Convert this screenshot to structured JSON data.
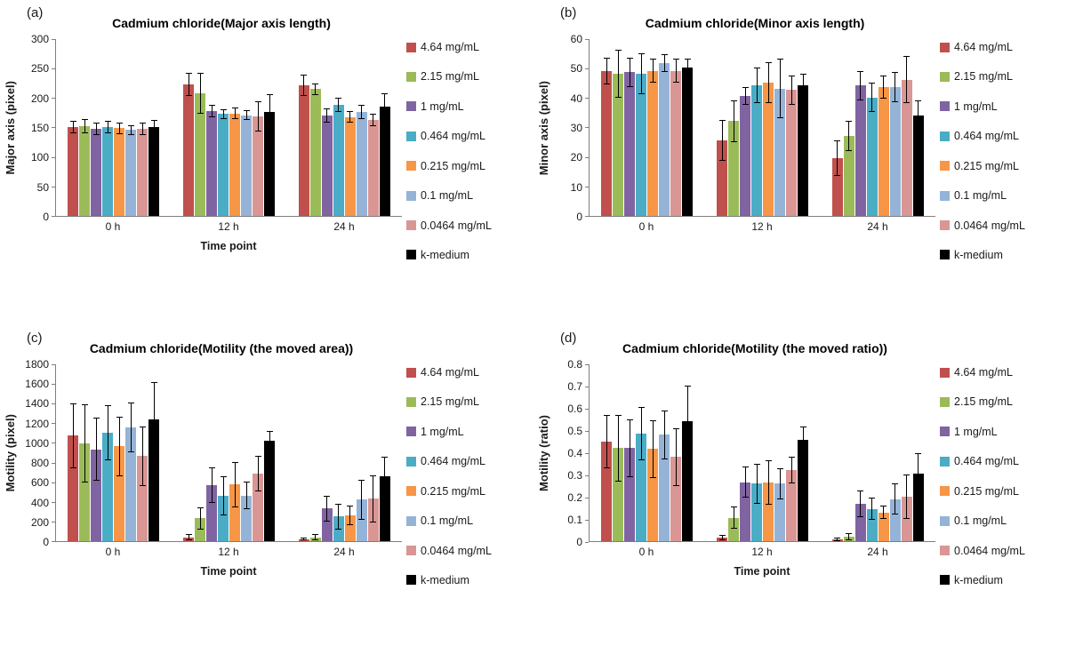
{
  "series": [
    {
      "key": "4-64-mgml",
      "name": "4.64 mg/mL",
      "color": "#C0504D"
    },
    {
      "key": "2-15-mgml",
      "name": "2.15 mg/mL",
      "color": "#9BBB59"
    },
    {
      "key": "1-mgml",
      "name": "1 mg/mL",
      "color": "#8064A2"
    },
    {
      "key": "0-464-mgml",
      "name": "0.464 mg/mL",
      "color": "#4BACC6"
    },
    {
      "key": "0-215-mgml",
      "name": "0.215 mg/mL",
      "color": "#F79646"
    },
    {
      "key": "0-1-mgml",
      "name": "0.1 mg/mL",
      "color": "#95B3D7"
    },
    {
      "key": "0-0464-mgml",
      "name": "0.0464 mg/mL",
      "color": "#D99694"
    },
    {
      "key": "k-medium",
      "name": "k-medium",
      "color": "#000000"
    }
  ],
  "chart_data": [
    {
      "type": "bar",
      "tag": "(a)",
      "title": "Cadmium chloride(Major axis length)",
      "ylabel": "Major axis (pixel)",
      "xlabel": "Time point",
      "ylim": [
        0,
        300
      ],
      "yticks": [
        "300",
        "250",
        "200",
        "150",
        "100",
        "50",
        "0"
      ],
      "grid": false,
      "legend_position": "right",
      "categories": [
        "0 h",
        "12 h",
        "24 h"
      ],
      "series": [
        {
          "name": "4.64 mg/mL",
          "values": [
            150,
            222,
            220
          ],
          "errors": [
            10,
            20,
            18
          ]
        },
        {
          "name": "2.15 mg/mL",
          "values": [
            152,
            207,
            214
          ],
          "errors": [
            12,
            35,
            10
          ]
        },
        {
          "name": "1 mg/mL",
          "values": [
            147,
            177,
            170
          ],
          "errors": [
            10,
            10,
            12
          ]
        },
        {
          "name": "0.464 mg/mL",
          "values": [
            150,
            172,
            187
          ],
          "errors": [
            10,
            8,
            12
          ]
        },
        {
          "name": "0.215 mg/mL",
          "values": [
            148,
            173,
            167
          ],
          "errors": [
            10,
            10,
            10
          ]
        },
        {
          "name": "0.1 mg/mL",
          "values": [
            145,
            170,
            176
          ],
          "errors": [
            8,
            8,
            12
          ]
        },
        {
          "name": "0.0464 mg/mL",
          "values": [
            147,
            168,
            162
          ],
          "errors": [
            10,
            25,
            10
          ]
        },
        {
          "name": "k-medium",
          "values": [
            150,
            175,
            185
          ],
          "errors": [
            12,
            30,
            22
          ]
        }
      ]
    },
    {
      "type": "bar",
      "tag": "(b)",
      "title": "Cadmium chloride(Minor axis length)",
      "ylabel": "Minor axis (pixel)",
      "xlabel": "",
      "ylim": [
        0,
        60
      ],
      "yticks": [
        "60",
        "50",
        "40",
        "30",
        "20",
        "10",
        "0"
      ],
      "grid": false,
      "legend_position": "right",
      "categories": [
        "0 h",
        "12 h",
        "24 h"
      ],
      "series": [
        {
          "name": "4.64 mg/mL",
          "values": [
            49,
            25.5,
            19.5
          ],
          "errors": [
            4.5,
            7,
            6
          ]
        },
        {
          "name": "2.15 mg/mL",
          "values": [
            48,
            32,
            27
          ],
          "errors": [
            8,
            7,
            5
          ]
        },
        {
          "name": "1 mg/mL",
          "values": [
            48.5,
            40.5,
            44
          ],
          "errors": [
            5,
            3,
            5
          ]
        },
        {
          "name": "0.464 mg/mL",
          "values": [
            48,
            44,
            40
          ],
          "errors": [
            7,
            6,
            5
          ]
        },
        {
          "name": "0.215 mg/mL",
          "values": [
            49,
            45,
            43.5
          ],
          "errors": [
            4,
            7,
            4
          ]
        },
        {
          "name": "0.1 mg/mL",
          "values": [
            51.5,
            43,
            43.5
          ],
          "errors": [
            3,
            10,
            5
          ]
        },
        {
          "name": "0.0464 mg/mL",
          "values": [
            49,
            42.5,
            46
          ],
          "errors": [
            4,
            5,
            8
          ]
        },
        {
          "name": "k-medium",
          "values": [
            50,
            44,
            34
          ],
          "errors": [
            3,
            4,
            5
          ]
        }
      ]
    },
    {
      "type": "bar",
      "tag": "(c)",
      "title": "Cadmium chloride(Motility (the moved area))",
      "ylabel": "Motility (pixel)",
      "xlabel": "Time point",
      "ylim": [
        0,
        1800
      ],
      "yticks": [
        "1800",
        "1600",
        "1400",
        "1200",
        "1000",
        "800",
        "600",
        "400",
        "200",
        "0"
      ],
      "grid": false,
      "legend_position": "right",
      "categories": [
        "0 h",
        "12 h",
        "24 h"
      ],
      "series": [
        {
          "name": "4.64 mg/mL",
          "values": [
            1070,
            40,
            20
          ],
          "errors": [
            330,
            30,
            15
          ]
        },
        {
          "name": "2.15 mg/mL",
          "values": [
            990,
            230,
            40
          ],
          "errors": [
            400,
            110,
            30
          ]
        },
        {
          "name": "1 mg/mL",
          "values": [
            930,
            570,
            330
          ],
          "errors": [
            320,
            180,
            130
          ]
        },
        {
          "name": "0.464 mg/mL",
          "values": [
            1100,
            460,
            250
          ],
          "errors": [
            280,
            200,
            130
          ]
        },
        {
          "name": "0.215 mg/mL",
          "values": [
            960,
            575,
            260
          ],
          "errors": [
            300,
            230,
            100
          ]
        },
        {
          "name": "0.1 mg/mL",
          "values": [
            1150,
            460,
            420
          ],
          "errors": [
            250,
            140,
            200
          ]
        },
        {
          "name": "0.0464 mg/mL",
          "values": [
            860,
            680,
            430
          ],
          "errors": [
            300,
            180,
            240
          ]
        },
        {
          "name": "k-medium",
          "values": [
            1230,
            1020,
            660
          ],
          "errors": [
            380,
            100,
            200
          ]
        }
      ]
    },
    {
      "type": "bar",
      "tag": "(d)",
      "title": "Cadmium chloride(Motility (the moved ratio))",
      "ylabel": "Motility (ratio)",
      "xlabel": "Time point",
      "ylim": [
        0,
        0.8
      ],
      "yticks": [
        "0.8",
        "0.7",
        "0.6",
        "0.5",
        "0.4",
        "0.3",
        "0.2",
        "0.1",
        "0"
      ],
      "grid": false,
      "legend_position": "right",
      "categories": [
        "0 h",
        "12 h",
        "24 h"
      ],
      "series": [
        {
          "name": "4.64 mg/mL",
          "values": [
            0.45,
            0.015,
            0.01
          ],
          "errors": [
            0.12,
            0.012,
            0.008
          ]
        },
        {
          "name": "2.15 mg/mL",
          "values": [
            0.42,
            0.105,
            0.02
          ],
          "errors": [
            0.15,
            0.05,
            0.015
          ]
        },
        {
          "name": "1 mg/mL",
          "values": [
            0.42,
            0.265,
            0.17
          ],
          "errors": [
            0.13,
            0.07,
            0.06
          ]
        },
        {
          "name": "0.464 mg/mL",
          "values": [
            0.485,
            0.26,
            0.145
          ],
          "errors": [
            0.12,
            0.09,
            0.05
          ]
        },
        {
          "name": "0.215 mg/mL",
          "values": [
            0.415,
            0.265,
            0.13
          ],
          "errors": [
            0.13,
            0.1,
            0.03
          ]
        },
        {
          "name": "0.1 mg/mL",
          "values": [
            0.48,
            0.26,
            0.19
          ],
          "errors": [
            0.11,
            0.07,
            0.07
          ]
        },
        {
          "name": "0.0464 mg/mL",
          "values": [
            0.38,
            0.32,
            0.2
          ],
          "errors": [
            0.13,
            0.06,
            0.1
          ]
        },
        {
          "name": "k-medium",
          "values": [
            0.54,
            0.455,
            0.305
          ],
          "errors": [
            0.16,
            0.06,
            0.09
          ]
        }
      ]
    }
  ]
}
